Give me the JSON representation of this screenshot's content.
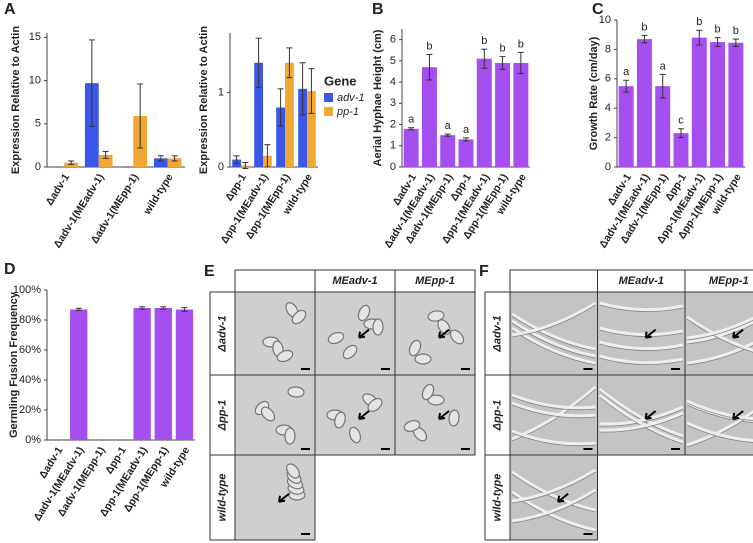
{
  "chart_data": [
    {
      "type": "bar",
      "panel_label": "A",
      "ylabel": "Expression Relative to Actin",
      "categories": [
        "Δadv-1",
        "Δadv-1(MEadv-1)",
        "Δadv-1(MEpp-1)",
        "wild-type"
      ],
      "series": [
        {
          "name": "adv-1",
          "color": "#3a57e8",
          "values": [
            0,
            9.7,
            0,
            1.0
          ],
          "errors": [
            0,
            5.0,
            0,
            0.3
          ]
        },
        {
          "name": "pp-1",
          "color": "#f0a832",
          "values": [
            0.5,
            1.4,
            5.9,
            1.0
          ],
          "errors": [
            0.2,
            0.4,
            3.7,
            0.3
          ]
        }
      ],
      "ylim": [
        0,
        15.5
      ],
      "yticks": [
        0,
        5,
        10,
        15
      ],
      "grid": false
    },
    {
      "type": "bar",
      "ylabel": "Expression Relative to Actin",
      "legend_title": "Gene",
      "legend": "right",
      "categories": [
        "Δpp-1",
        "Δpp-1(MEadv-1)",
        "Δpp-1(MEpp-1)",
        "wild-type"
      ],
      "series": [
        {
          "name": "adv-1",
          "color": "#3a57e8",
          "values": [
            0.1,
            1.4,
            0.8,
            1.05
          ],
          "errors": [
            0.05,
            0.33,
            0.25,
            0.35
          ]
        },
        {
          "name": "pp-1",
          "color": "#f0a832",
          "values": [
            0.02,
            0.15,
            1.4,
            1.02
          ],
          "errors": [
            0.04,
            0.15,
            0.2,
            0.3
          ]
        }
      ],
      "ylim": [
        0,
        1.8
      ],
      "yticks": [
        0,
        1
      ],
      "grid": false
    },
    {
      "type": "bar",
      "panel_label": "B",
      "ylabel": "Aerial Hyphae Height (cm)",
      "color": "#a64ff0",
      "categories": [
        "Δadv-1",
        "Δadv-1(MEadv-1)",
        "Δadv-1(MEpp-1)",
        "Δpp-1",
        "Δpp-1(MEadv-1)",
        "Δpp-1(MEpp-1)",
        "wild-type"
      ],
      "values": [
        1.8,
        4.7,
        1.5,
        1.3,
        5.1,
        4.9,
        4.9
      ],
      "errors": [
        0.05,
        0.6,
        0.05,
        0.07,
        0.45,
        0.3,
        0.5
      ],
      "letters": [
        "a",
        "b",
        "a",
        "a",
        "b",
        "b",
        "b"
      ],
      "ylim": [
        0,
        6.5
      ],
      "yticks": [
        0,
        1,
        2,
        3,
        4,
        5,
        6
      ],
      "grid": false
    },
    {
      "type": "bar",
      "panel_label": "C",
      "ylabel": "Growth Rate (cm/day)",
      "color": "#a64ff0",
      "categories": [
        "Δadv-1",
        "Δadv-1(MEadv-1)",
        "Δadv-1(MEpp-1)",
        "Δpp-1",
        "Δpp-1(MEadv-1)",
        "Δpp-1(MEpp-1)",
        "wild-type"
      ],
      "values": [
        5.5,
        8.7,
        5.5,
        2.3,
        8.8,
        8.5,
        8.45
      ],
      "errors": [
        0.4,
        0.25,
        0.8,
        0.3,
        0.5,
        0.3,
        0.25
      ],
      "letters": [
        "a",
        "b",
        "a",
        "c",
        "b",
        "b",
        "b"
      ],
      "ylim": [
        0,
        10
      ],
      "yticks": [
        0,
        2,
        4,
        6,
        8,
        10
      ],
      "grid": false
    },
    {
      "type": "bar",
      "panel_label": "D",
      "ylabel": "Germling Fusion Frequency",
      "color": "#a64ff0",
      "categories": [
        "Δadv-1",
        "Δadv-1(MEadv-1)",
        "Δadv-1(MEpp-1)",
        "Δpp-1",
        "Δpp-1(MEadv-1)",
        "Δpp-1(MEpp-1)",
        "wild-type"
      ],
      "values": [
        0,
        87,
        0,
        0,
        88,
        88,
        87
      ],
      "errors": [
        0,
        0.8,
        0,
        0,
        0.8,
        0.8,
        1.2
      ],
      "ylim": [
        0,
        100
      ],
      "yticks": [
        {
          "value": 0,
          "label": "0%"
        },
        {
          "value": 20,
          "label": "20%"
        },
        {
          "value": 40,
          "label": "40%"
        },
        {
          "value": 60,
          "label": "60%"
        },
        {
          "value": 80,
          "label": "80%"
        },
        {
          "value": 100,
          "label": "100%"
        }
      ],
      "grid": false
    }
  ],
  "image_panels": [
    {
      "panel_label": "E",
      "columns": [
        "MEadv-1",
        "MEpp-1"
      ],
      "rows": [
        "Δadv-1",
        "Δpp-1",
        "wild-type"
      ]
    },
    {
      "panel_label": "F",
      "columns": [
        "MEadv-1",
        "MEpp-1"
      ],
      "rows": [
        "Δadv-1",
        "Δpp-1",
        "wild-type"
      ]
    }
  ]
}
